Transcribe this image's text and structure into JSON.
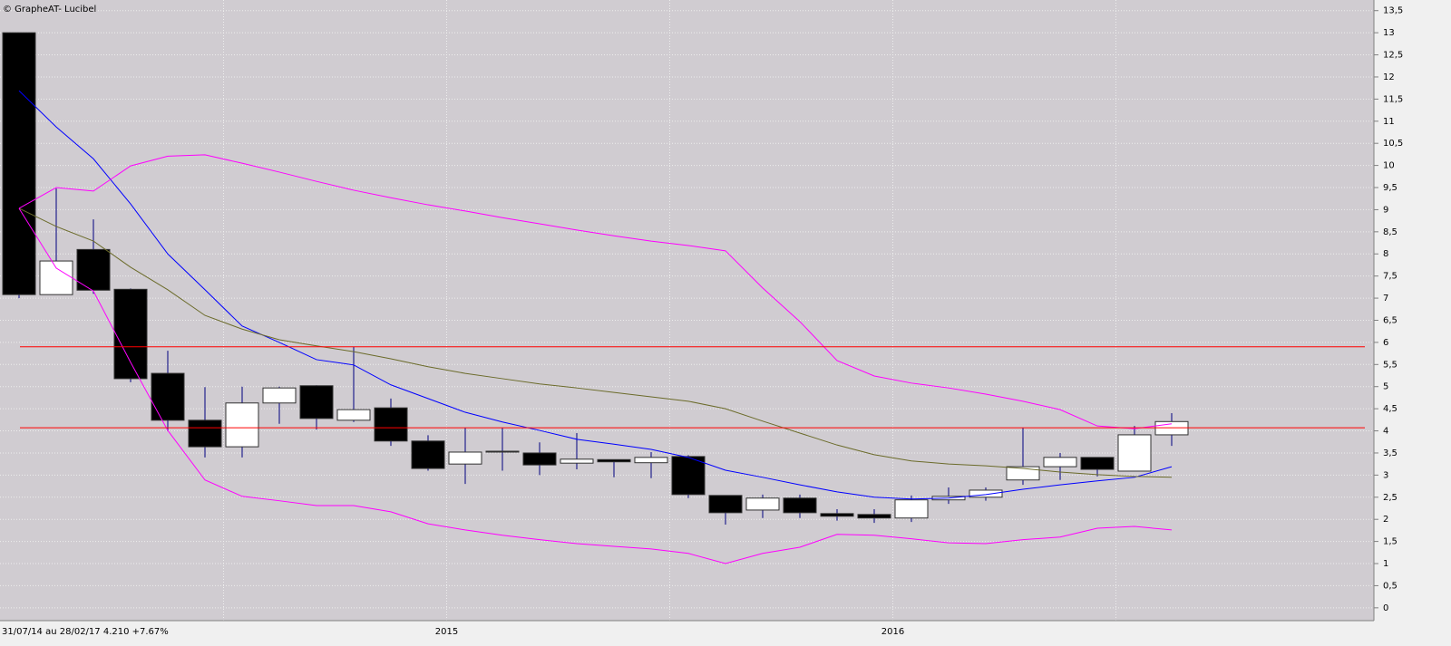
{
  "chart_data": {
    "type": "candlestick",
    "title": "© GrapheAT- Lucibel",
    "footer": "31/07/14 au 28/02/17 4.210 +7.67%",
    "categories": [
      null,
      null,
      null,
      null,
      null,
      null,
      null,
      null,
      null,
      null,
      null,
      null,
      "2015",
      null,
      null,
      null,
      null,
      null,
      null,
      null,
      null,
      null,
      null,
      null,
      "2016",
      null,
      null,
      null,
      null,
      null,
      null,
      null
    ],
    "open": [
      13.0,
      7.08,
      8.1,
      7.2,
      5.3,
      4.24,
      3.64,
      4.63,
      5.02,
      4.24,
      4.52,
      3.77,
      3.25,
      3.52,
      3.5,
      3.27,
      3.35,
      3.28,
      3.42,
      2.54,
      2.21,
      2.48,
      2.13,
      2.11,
      2.03,
      2.44,
      2.5,
      2.89,
      3.19,
      3.4,
      3.09,
      3.91
    ],
    "high": [
      13.0,
      9.48,
      8.78,
      7.22,
      5.81,
      4.99,
      5.0,
      5.0,
      5.03,
      5.9,
      4.73,
      3.9,
      4.07,
      4.07,
      3.74,
      3.95,
      3.35,
      3.52,
      3.45,
      2.54,
      2.56,
      2.56,
      2.23,
      2.23,
      2.54,
      2.72,
      2.72,
      4.07,
      3.5,
      3.4,
      4.11,
      4.4
    ],
    "low": [
      7.0,
      7.08,
      7.1,
      5.1,
      3.99,
      3.4,
      3.4,
      4.16,
      4.03,
      4.2,
      3.66,
      3.1,
      2.8,
      3.1,
      3.0,
      3.13,
      2.95,
      2.93,
      2.48,
      1.88,
      2.03,
      2.03,
      1.97,
      1.92,
      1.94,
      2.35,
      2.42,
      2.78,
      2.89,
      2.97,
      3.09,
      3.66
    ],
    "close": [
      7.08,
      7.84,
      7.18,
      5.18,
      4.24,
      3.64,
      4.63,
      4.97,
      4.28,
      4.48,
      3.77,
      3.15,
      3.52,
      3.54,
      3.23,
      3.36,
      3.3,
      3.4,
      2.56,
      2.15,
      2.48,
      2.15,
      2.07,
      2.03,
      2.44,
      2.52,
      2.66,
      3.19,
      3.4,
      3.13,
      3.91,
      4.21
    ],
    "up_color": "#ffffff",
    "down_color": "#000000",
    "lines": [
      {
        "color": "#0000ff",
        "values": [
          11.69,
          10.87,
          10.15,
          9.13,
          8.0,
          7.19,
          6.37,
          6.0,
          5.61,
          5.49,
          5.04,
          4.73,
          4.42,
          4.2,
          4.01,
          3.81,
          3.7,
          3.58,
          3.4,
          3.11,
          2.95,
          2.78,
          2.62,
          2.5,
          2.46,
          2.48,
          2.56,
          2.68,
          2.78,
          2.87,
          2.95,
          3.19
        ]
      },
      {
        "color": "#6b6b2a",
        "values": [
          9.03,
          8.62,
          8.29,
          7.7,
          7.19,
          6.61,
          6.3,
          6.06,
          5.92,
          5.79,
          5.63,
          5.45,
          5.3,
          5.18,
          5.06,
          4.97,
          4.87,
          4.77,
          4.67,
          4.5,
          4.22,
          3.95,
          3.68,
          3.46,
          3.32,
          3.25,
          3.21,
          3.15,
          3.07,
          3.01,
          2.97,
          2.95
        ]
      },
      {
        "color": "#ff00ff",
        "values": [
          9.03,
          9.5,
          9.42,
          9.99,
          10.21,
          10.24,
          10.05,
          9.85,
          9.64,
          9.44,
          9.27,
          9.11,
          8.97,
          8.82,
          8.68,
          8.54,
          8.41,
          8.29,
          8.19,
          8.07,
          7.23,
          6.47,
          5.59,
          5.24,
          5.08,
          4.97,
          4.83,
          4.67,
          4.48,
          4.11,
          4.05,
          4.16
        ]
      },
      {
        "color": "#ff00ff",
        "values": [
          9.03,
          7.68,
          7.16,
          5.55,
          4.01,
          2.89,
          2.52,
          2.42,
          2.31,
          2.31,
          2.17,
          1.9,
          1.76,
          1.64,
          1.54,
          1.45,
          1.39,
          1.33,
          1.23,
          1.0,
          1.23,
          1.37,
          1.66,
          1.64,
          1.56,
          1.47,
          1.45,
          1.54,
          1.6,
          1.8,
          1.84,
          1.76
        ]
      }
    ],
    "hlines": [
      {
        "value": 5.9,
        "color": "#ff0000"
      },
      {
        "value": 4.07,
        "color": "#ff0000"
      }
    ],
    "ylim": [
      -0.29,
      13.74
    ],
    "yticks": [
      0,
      {
        "value": 0.5,
        "label": "0,5"
      },
      1,
      {
        "value": 1.5,
        "label": "1,5"
      },
      2,
      {
        "value": 2.5,
        "label": "2,5"
      },
      3,
      {
        "value": 3.5,
        "label": "3,5"
      },
      4,
      {
        "value": 4.5,
        "label": "4,5"
      },
      5,
      {
        "value": 5.5,
        "label": "5,5"
      },
      6,
      {
        "value": 6.5,
        "label": "6,5"
      },
      7,
      {
        "value": 7.5,
        "label": "7,5"
      },
      8,
      {
        "value": 8.5,
        "label": "8,5"
      },
      9,
      {
        "value": 9.5,
        "label": "9,5"
      },
      10,
      {
        "value": 10.5,
        "label": "10,5"
      },
      11,
      {
        "value": 11.5,
        "label": "11,5"
      },
      12,
      {
        "value": 12.5,
        "label": "12,5"
      },
      13,
      {
        "value": 13.5,
        "label": "13,5"
      }
    ],
    "grid": true,
    "background": "#d0ccd1"
  }
}
